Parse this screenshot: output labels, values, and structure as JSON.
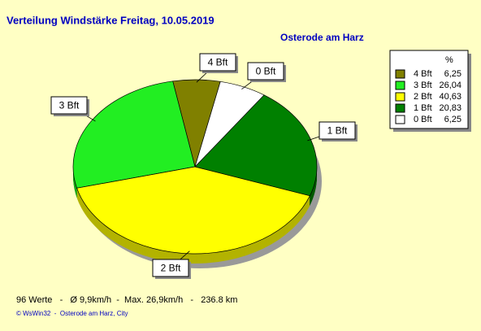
{
  "chart_data": {
    "type": "pie",
    "title": "Verteilung Windstärke  Freitag, 10.05.2019",
    "subtitle": "Osterode am Harz",
    "legend_header": "%",
    "categories": [
      "4 Bft",
      "3 Bft",
      "2 Bft",
      "1 Bft",
      "0 Bft"
    ],
    "values": [
      6.25,
      26.04,
      40.63,
      20.83,
      6.25
    ],
    "value_labels": [
      "6,25",
      "26,04",
      "40,63",
      "20,83",
      "6,25"
    ],
    "colors": [
      "#808000",
      "#22ee22",
      "#ffff00",
      "#008000",
      "#ffffff"
    ],
    "legend": "upper right",
    "footer": "96 Werte   -   Ø 9,9km/h  -  Max. 26,9km/h   -   236.8 km",
    "credit": "© WsWin32  -  Osterode am Harz, City"
  }
}
